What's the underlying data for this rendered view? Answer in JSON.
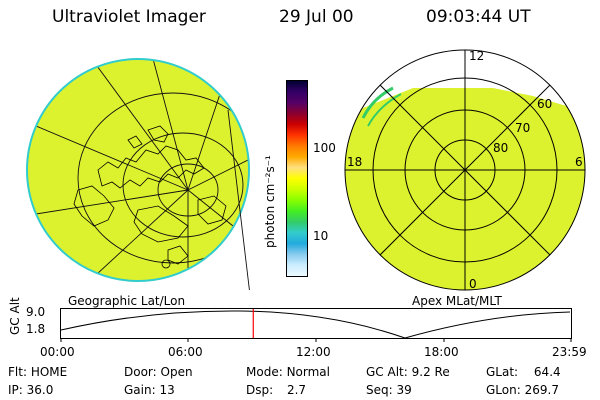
{
  "header": {
    "title": "Ultraviolet Imager",
    "date": "29 Jul 00",
    "time": "09:03:44 UT"
  },
  "colorbar": {
    "unit_label": "photon cm⁻²s⁻¹",
    "ticks": [
      "100",
      "10"
    ],
    "colors": [
      "#000033",
      "#330066",
      "#550066",
      "#8a0030",
      "#cc0000",
      "#ff3300",
      "#ff7a00",
      "#ffaa00",
      "#ffe080",
      "#ffff00",
      "#ccff00",
      "#88ff00",
      "#44ee22",
      "#33cc66",
      "#33cccc",
      "#22aadd",
      "#88ccee",
      "#cceeff",
      "#eef8ff"
    ]
  },
  "geo_map": {
    "label": "Geographic Lat/Lon",
    "fill_color": "#ddf22e"
  },
  "polar_map": {
    "label": "Apex MLat/MLT",
    "mlt_labels": {
      "top": "12",
      "left": "18",
      "right": "6",
      "bottom": "0"
    },
    "lat_labels": [
      "60",
      "70",
      "80"
    ]
  },
  "altitude_plot": {
    "ylabel": "GC Alt",
    "yticks": [
      "9.0",
      "1.8"
    ],
    "xticks": [
      "00:00",
      "06:00",
      "12:00",
      "18:00",
      "23:59"
    ],
    "cursor_color": "#ff0000",
    "cursor_time_fraction": 0.377
  },
  "status": {
    "flt_label": "Flt:",
    "flt_value": "HOME",
    "ip_label": "IP:",
    "ip_value": "36.0",
    "door_label": "Door:",
    "door_value": "Open",
    "gain_label": "Gain:",
    "gain_value": "13",
    "mode_label": "Mode:",
    "mode_value": "Normal",
    "dsp_label": "Dsp:",
    "dsp_value": "2.7",
    "gcalt_label": "GC Alt:",
    "gcalt_value": "9.2 Re",
    "seq_label": "Seq:",
    "seq_value": "39",
    "glat_label": "GLat:",
    "glat_value": "64.4",
    "glon_label": "GLon:",
    "glon_value": "269.7"
  }
}
